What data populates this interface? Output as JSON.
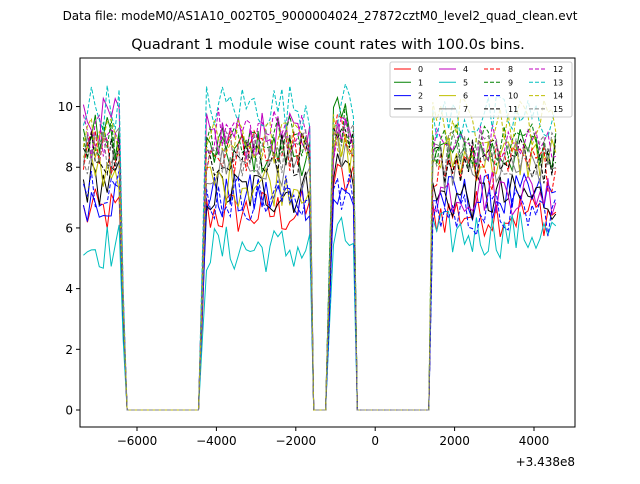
{
  "chart_data": {
    "type": "line",
    "suptitle": "Data file: modeM0/AS1A10_002T05_9000004024_27872cztM0_level2_quad_clean.evt",
    "title": "Quadrant 1 module wise count rates with 100.0s bins.",
    "xlabel": "",
    "ylabel": "",
    "x_offset_label": "+3.438e8",
    "xlim": [
      -7436,
      5033
    ],
    "ylim": [
      -0.56,
      11.6
    ],
    "xticks": [
      -6000,
      -4000,
      -2000,
      0,
      2000,
      4000
    ],
    "xtick_labels": [
      "−6000",
      "−4000",
      "−2000",
      "0",
      "2000",
      "4000"
    ],
    "yticks": [
      0,
      2,
      4,
      6,
      8,
      10
    ],
    "ytick_labels": [
      "0",
      "2",
      "4",
      "6",
      "8",
      "10"
    ],
    "grid": false,
    "legend_placement": "top-right",
    "bin_size": 100,
    "x_start": -7350,
    "x_end": 4550,
    "on_intervals": [
      [
        -7350,
        -6400
      ],
      [
        -4300,
        -1650
      ],
      [
        -1100,
        -550
      ],
      [
        1450,
        4550
      ]
    ],
    "series": [
      {
        "name": "0",
        "color": "#ff0000",
        "dash": false,
        "segment_means": [
          6.5,
          6.5,
          7.5,
          6.5
        ]
      },
      {
        "name": "1",
        "color": "#008000",
        "dash": false,
        "segment_means": [
          9.0,
          8.5,
          9.5,
          8.5
        ]
      },
      {
        "name": "2",
        "color": "#0000ff",
        "dash": false,
        "segment_means": [
          7.0,
          7.0,
          7.0,
          7.0
        ]
      },
      {
        "name": "3",
        "color": "#000000",
        "dash": false,
        "segment_means": [
          7.5,
          7.2,
          8.0,
          7.0
        ]
      },
      {
        "name": "4",
        "color": "#bf00bf",
        "dash": false,
        "segment_means": [
          9.5,
          9.0,
          9.0,
          7.2
        ]
      },
      {
        "name": "5",
        "color": "#00bfbf",
        "dash": false,
        "segment_means": [
          5.4,
          5.3,
          5.6,
          5.8
        ]
      },
      {
        "name": "6",
        "color": "#bfbf00",
        "dash": false,
        "segment_means": [
          8.0,
          7.5,
          8.5,
          8.3
        ]
      },
      {
        "name": "7",
        "color": "#808080",
        "dash": false,
        "segment_means": [
          8.5,
          8.0,
          8.5,
          8.0
        ]
      },
      {
        "name": "8",
        "color": "#ff0000",
        "dash": true,
        "segment_means": [
          8.5,
          8.5,
          9.0,
          8.0
        ]
      },
      {
        "name": "9",
        "color": "#008000",
        "dash": true,
        "segment_means": [
          9.0,
          9.0,
          9.5,
          8.8
        ]
      },
      {
        "name": "10",
        "color": "#0000ff",
        "dash": true,
        "segment_means": [
          7.5,
          7.0,
          7.0,
          6.5
        ]
      },
      {
        "name": "11",
        "color": "#000000",
        "dash": true,
        "segment_means": [
          8.5,
          8.5,
          8.5,
          8.2
        ]
      },
      {
        "name": "12",
        "color": "#bf00bf",
        "dash": true,
        "segment_means": [
          9.0,
          9.2,
          9.0,
          8.7
        ]
      },
      {
        "name": "13",
        "color": "#00bfbf",
        "dash": true,
        "segment_means": [
          10.0,
          10.0,
          10.0,
          9.6
        ]
      },
      {
        "name": "14",
        "color": "#bfbf00",
        "dash": true,
        "segment_means": [
          9.0,
          8.8,
          9.0,
          9.5
        ]
      },
      {
        "name": "15",
        "color": "#808080",
        "dash": true,
        "segment_means": [
          8.5,
          8.5,
          9.0,
          8.5
        ]
      }
    ]
  }
}
